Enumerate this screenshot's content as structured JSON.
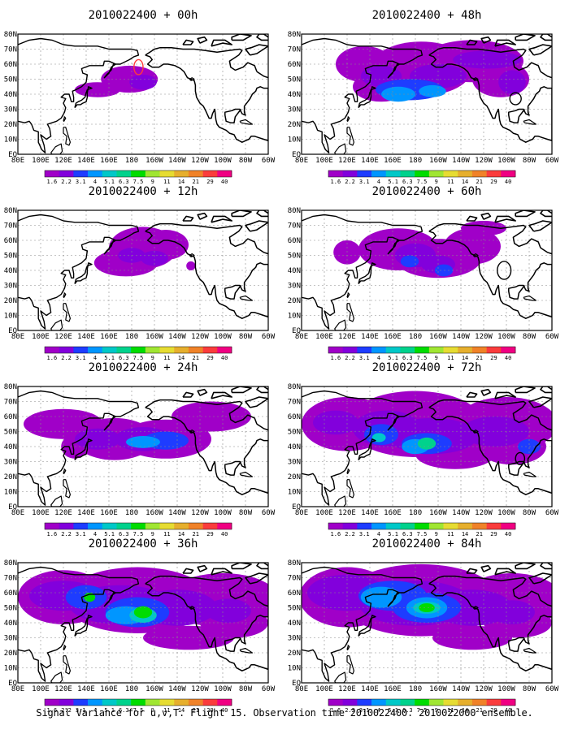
{
  "figure": {
    "panels": [
      {
        "title": "2010022400 + 00h",
        "lead_hours": 0
      },
      {
        "title": "2010022400 + 48h",
        "lead_hours": 48
      },
      {
        "title": "2010022400 + 12h",
        "lead_hours": 12
      },
      {
        "title": "2010022400 + 60h",
        "lead_hours": 60
      },
      {
        "title": "2010022400 + 24h",
        "lead_hours": 24
      },
      {
        "title": "2010022400 + 72h",
        "lead_hours": 72
      },
      {
        "title": "2010022400 + 36h",
        "lead_hours": 36
      },
      {
        "title": "2010022400 + 84h",
        "lead_hours": 84
      }
    ],
    "lon_labels": [
      "80E",
      "100E",
      "120E",
      "140E",
      "160E",
      "180",
      "160W",
      "140W",
      "120W",
      "100W",
      "80W",
      "60W"
    ],
    "lat_labels": [
      "EQ",
      "10N",
      "20N",
      "30N",
      "40N",
      "50N",
      "60N",
      "70N",
      "80N"
    ],
    "colorbar": {
      "labels": [
        "1.6",
        "2.2",
        "3.1",
        "4",
        "5.1",
        "6.3",
        "7.5",
        "9",
        "11",
        "14",
        "21",
        "29",
        "40"
      ],
      "colors": [
        "#a000c8",
        "#8200dc",
        "#1e3cff",
        "#0096ff",
        "#00c8c8",
        "#00d28c",
        "#00dc00",
        "#a0e632",
        "#e6dc32",
        "#e6af2d",
        "#f08228",
        "#fa3c3c",
        "#f00082"
      ]
    },
    "footer": "Signal Variance for u,v,T. Flight 15. Observation time 2010022400. 2010022000 ensemble."
  }
}
